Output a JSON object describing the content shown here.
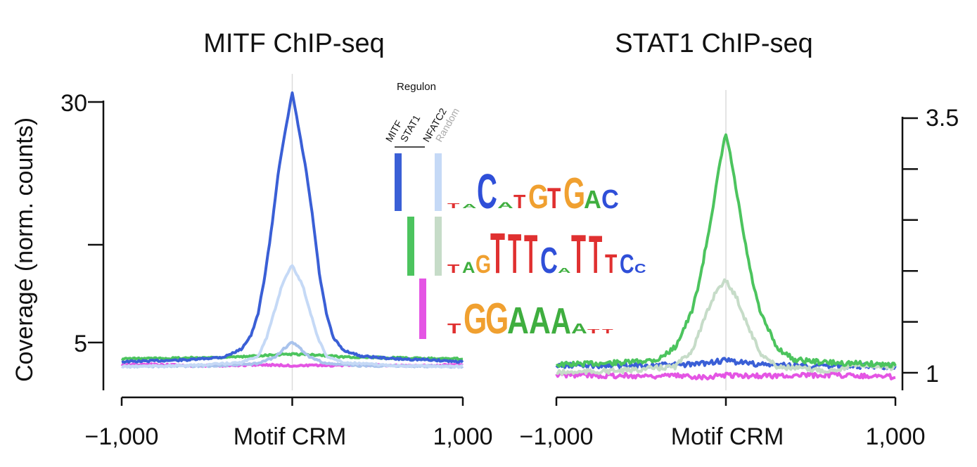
{
  "chart_data": [
    {
      "type": "line",
      "title": "MITF ChIP-seq",
      "ylabel": "Coverage (norm. counts)",
      "xlabel": "Motif CRM",
      "x_tick_labels": [
        "−1,000",
        "1,000"
      ],
      "y_tick_labels": [
        "30",
        "5"
      ],
      "y_ticks": [
        30,
        5
      ],
      "xlim": [
        -1000,
        1000
      ],
      "ylim": [
        0.5,
        32
      ],
      "series": [
        {
          "color": "#3a5fd6",
          "x": [
            -1000,
            -800,
            -600,
            -400,
            -300,
            -240,
            -200,
            -160,
            -120,
            -80,
            -40,
            0,
            40,
            80,
            120,
            160,
            200,
            240,
            300,
            400,
            600,
            800,
            1000
          ],
          "y": [
            3.0,
            3.1,
            3.2,
            3.5,
            4.3,
            5.8,
            8,
            12,
            17,
            23,
            27,
            31,
            27,
            23,
            18,
            12,
            8,
            5.5,
            4.2,
            3.6,
            3.3,
            3.2,
            3.0
          ]
        },
        {
          "color": "#c5d9f6",
          "x": [
            -1000,
            -600,
            -300,
            -200,
            -150,
            -100,
            -60,
            -20,
            0,
            20,
            60,
            100,
            150,
            200,
            300,
            600,
            1000
          ],
          "y": [
            2.5,
            2.6,
            2.9,
            3.6,
            5.5,
            8.5,
            11,
            12.5,
            13,
            12.3,
            11,
            8.5,
            5.5,
            3.6,
            2.9,
            2.6,
            2.5
          ]
        },
        {
          "color": "#a9c3ec",
          "x": [
            -1000,
            -400,
            -200,
            -100,
            -40,
            0,
            40,
            100,
            200,
            400,
            1000
          ],
          "y": [
            2.5,
            2.6,
            2.8,
            3.5,
            4.5,
            5.0,
            4.5,
            3.5,
            2.8,
            2.6,
            2.5
          ]
        },
        {
          "color": "#4cc45e",
          "x": [
            -1000,
            -600,
            -300,
            -150,
            0,
            150,
            300,
            600,
            1000
          ],
          "y": [
            3.3,
            3.4,
            3.5,
            3.7,
            3.8,
            3.7,
            3.5,
            3.4,
            3.3
          ]
        },
        {
          "color": "#e455e4",
          "x": [
            -1000,
            -800,
            -600,
            -400,
            -200,
            0,
            200,
            400,
            600,
            800,
            1000
          ],
          "y": [
            2.7,
            2.7,
            2.6,
            2.6,
            2.7,
            2.6,
            2.6,
            2.7,
            2.6,
            2.6,
            2.7
          ]
        }
      ]
    },
    {
      "type": "line",
      "title": "STAT1 ChIP-seq",
      "xlabel": "Motif CRM",
      "x_tick_labels": [
        "−1,000",
        "1,000"
      ],
      "y_tick_labels": [
        "3.5",
        "1"
      ],
      "y_ticks": [
        3.5,
        1
      ],
      "y_minor_ticks": [
        3.0,
        2.5,
        2.0,
        1.5
      ],
      "xlim": [
        -1000,
        1000
      ],
      "ylim": [
        0.9,
        3.65
      ],
      "series": [
        {
          "color": "#4cc45e",
          "x": [
            -1000,
            -600,
            -400,
            -300,
            -200,
            -150,
            -100,
            -60,
            -30,
            0,
            30,
            60,
            100,
            150,
            200,
            300,
            400,
            600,
            1000
          ],
          "y": [
            1.08,
            1.1,
            1.13,
            1.25,
            1.6,
            1.95,
            2.4,
            2.8,
            3.1,
            3.35,
            3.1,
            2.8,
            2.4,
            1.95,
            1.6,
            1.25,
            1.13,
            1.1,
            1.08
          ]
        },
        {
          "color": "#c6dcc8",
          "x": [
            -1000,
            -600,
            -300,
            -200,
            -120,
            -60,
            -20,
            0,
            20,
            60,
            120,
            200,
            300,
            600,
            800,
            1000
          ],
          "y": [
            1.0,
            1.02,
            1.06,
            1.22,
            1.55,
            1.8,
            1.88,
            1.9,
            1.85,
            1.75,
            1.5,
            1.2,
            1.06,
            1.02,
            1.08,
            1.05
          ]
        },
        {
          "color": "#3a5fd6",
          "x": [
            -1000,
            -500,
            -200,
            0,
            200,
            500,
            1000
          ],
          "y": [
            1.07,
            1.07,
            1.08,
            1.12,
            1.08,
            1.07,
            1.06
          ]
        },
        {
          "color": "#e455e4",
          "x": [
            -1000,
            -600,
            -300,
            -100,
            0,
            100,
            300,
            600,
            1000
          ],
          "y": [
            0.98,
            0.97,
            0.97,
            0.96,
            0.98,
            0.97,
            0.97,
            0.98,
            0.96
          ]
        }
      ]
    }
  ],
  "inset": {
    "title": "Regulon",
    "columns": [
      "MITF",
      "STAT1",
      "NFATC2",
      "Random"
    ],
    "column_colors": [
      "#222222",
      "#222222",
      "#222222",
      "#aaaaaa"
    ],
    "motifs": [
      {
        "bar_color": "#3a5fd6",
        "control_color": "#c5d9f6",
        "letters": "CATGTGAC",
        "tall_letters": [
          "C",
          "G",
          "T",
          "G"
        ],
        "sequence": "CATGTGAC"
      },
      {
        "bar_color": "#4cc45e",
        "control_color": "#c6dcc8",
        "sequence": "TAGTTTCATTTCC"
      },
      {
        "bar_color": "#e455e4",
        "sequence": "TGGAAAA"
      }
    ]
  }
}
